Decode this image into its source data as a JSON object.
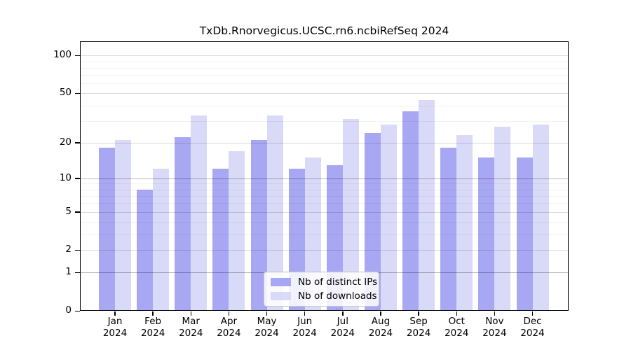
{
  "chart_data": {
    "type": "bar",
    "title": "TxDb.Rnorvegicus.UCSC.rn6.ncbiRefSeq 2024",
    "categories": [
      "Jan",
      "Feb",
      "Mar",
      "Apr",
      "May",
      "Jun",
      "Jul",
      "Aug",
      "Sep",
      "Oct",
      "Nov",
      "Dec"
    ],
    "category_year": "2024",
    "series": [
      {
        "name": "Nb of distinct IPs",
        "color": "#a7a7f3",
        "values": [
          18,
          8,
          22,
          12,
          21,
          12,
          13,
          24,
          36,
          18,
          15,
          15
        ]
      },
      {
        "name": "Nb of downloads",
        "color": "#d9d9f8",
        "values": [
          21,
          12,
          33,
          17,
          33,
          15,
          31,
          28,
          44,
          23,
          27,
          28
        ]
      }
    ],
    "xlabel": "",
    "ylabel": "",
    "yscale": "log1p",
    "ylim": [
      0,
      130
    ],
    "yticks": [
      0,
      1,
      2,
      5,
      10,
      20,
      50,
      100
    ],
    "yticks_minor": [
      3,
      4,
      6,
      7,
      8,
      9,
      30,
      40,
      60,
      70,
      80,
      90
    ],
    "yticks_emphasized": [
      1,
      10
    ],
    "grid": true,
    "legend": {
      "position": "bottom-center",
      "labels": [
        "Nb of distinct IPs",
        "Nb of downloads"
      ]
    },
    "colors": {
      "axis": "#000000",
      "background": "#ffffff",
      "gridline_major": "#d9d9d9",
      "gridline_emphasized": "#b8b8b8",
      "gridline_minor": "#f2f2f2"
    }
  }
}
